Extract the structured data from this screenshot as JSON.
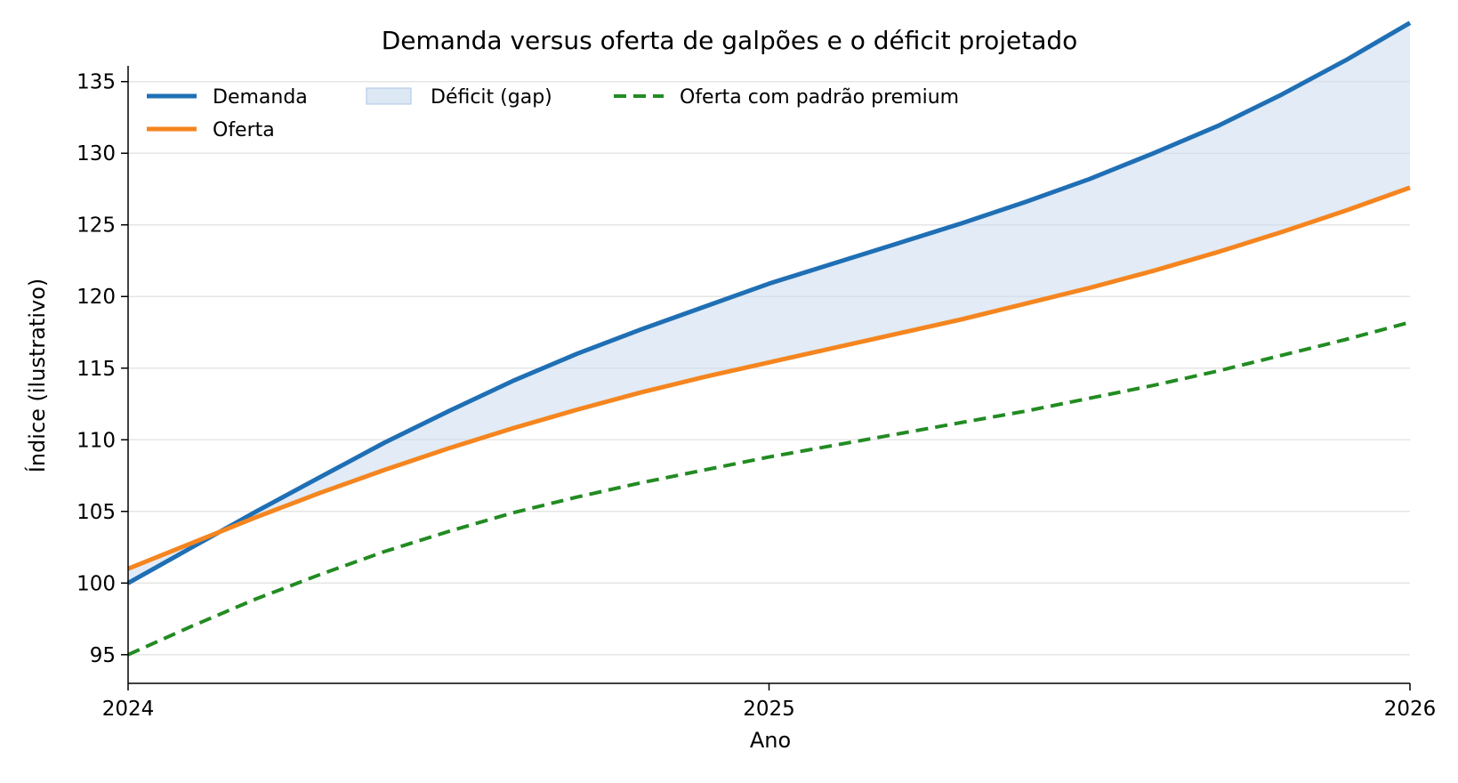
{
  "chart_data": {
    "type": "line",
    "title": "Demanda versus oferta de galpões e o déficit projetado",
    "xlabel": "Ano",
    "ylabel": "Índice (ilustrativo)",
    "xlim": [
      2024,
      2026
    ],
    "ylim": [
      93,
      136.1
    ],
    "x_ticks": [
      "2024",
      "2025",
      "2026"
    ],
    "y_ticks": [
      95,
      100,
      105,
      110,
      115,
      120,
      125,
      130,
      135
    ],
    "grid": "horizontal",
    "legend_position": "top-left",
    "x": [
      2024.0,
      2024.1,
      2024.2,
      2024.3,
      2024.4,
      2024.5,
      2024.6,
      2024.7,
      2024.8,
      2024.9,
      2025.0,
      2025.1,
      2025.2,
      2025.3,
      2025.4,
      2025.5,
      2025.6,
      2025.7,
      2025.8,
      2025.9,
      2026.0
    ],
    "series": [
      {
        "name": "Demanda",
        "color": "#1f6fb5",
        "style": "solid",
        "values": [
          100.0,
          102.5,
          105.0,
          107.4,
          109.8,
          112.0,
          114.1,
          116.0,
          117.7,
          119.3,
          120.9,
          122.3,
          123.7,
          125.1,
          126.6,
          128.2,
          130.0,
          131.9,
          134.1,
          136.5,
          139.1
        ]
      },
      {
        "name": "Oferta",
        "color": "#f5851f",
        "style": "solid",
        "values": [
          101.0,
          102.8,
          104.6,
          106.3,
          107.9,
          109.4,
          110.8,
          112.1,
          113.3,
          114.4,
          115.4,
          116.4,
          117.4,
          118.4,
          119.5,
          120.6,
          121.8,
          123.1,
          124.5,
          126.0,
          127.6
        ]
      },
      {
        "name": "Oferta com padrão premium",
        "color": "#228b22",
        "style": "dashed",
        "values": [
          95.0,
          97.0,
          98.9,
          100.6,
          102.2,
          103.6,
          104.9,
          106.0,
          107.0,
          107.9,
          108.8,
          109.6,
          110.4,
          111.2,
          112.0,
          112.9,
          113.8,
          114.8,
          115.9,
          117.0,
          118.2
        ]
      }
    ],
    "fill_between": {
      "name": "Déficit (gap)",
      "upper": "Demanda",
      "lower": "Oferta",
      "color": "#c6d8ee"
    }
  }
}
